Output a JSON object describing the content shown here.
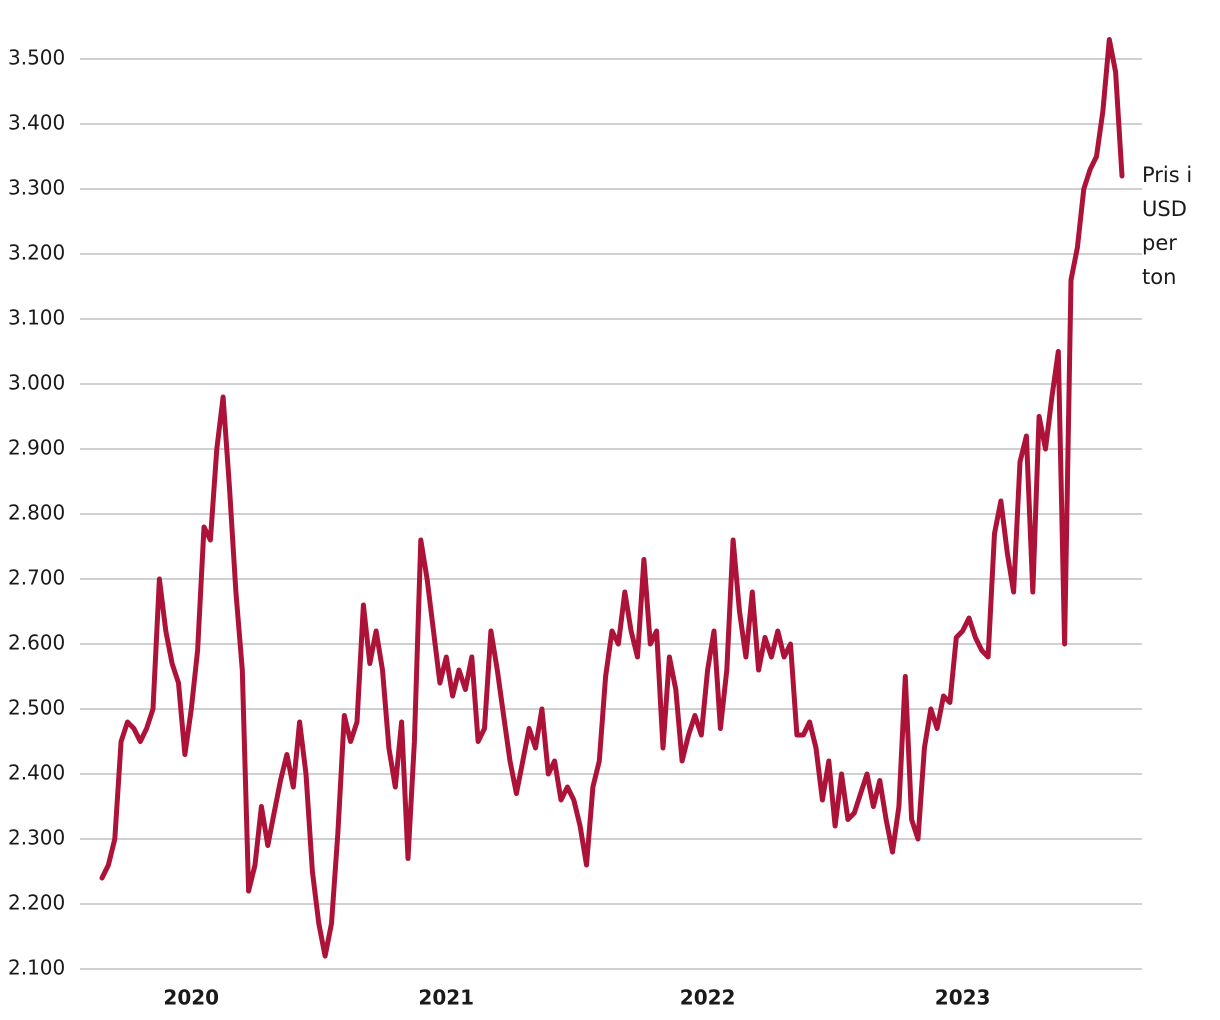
{
  "chart_data": {
    "type": "line",
    "annotation": "Pris i USD per ton",
    "categories": [
      null,
      null,
      null,
      null,
      null,
      null,
      null,
      null,
      null,
      null,
      null,
      null,
      null,
      null,
      "2020",
      null,
      null,
      null,
      null,
      null,
      null,
      null,
      null,
      null,
      null,
      null,
      null,
      null,
      null,
      null,
      null,
      null,
      null,
      null,
      null,
      null,
      null,
      null,
      null,
      null,
      null,
      null,
      null,
      null,
      null,
      null,
      null,
      null,
      null,
      null,
      null,
      null,
      null,
      null,
      "2021",
      null,
      null,
      null,
      null,
      null,
      null,
      null,
      null,
      null,
      null,
      null,
      null,
      null,
      null,
      null,
      null,
      null,
      null,
      null,
      null,
      null,
      null,
      null,
      null,
      null,
      null,
      null,
      null,
      null,
      null,
      null,
      null,
      null,
      null,
      null,
      null,
      null,
      null,
      null,
      null,
      "2022",
      null,
      null,
      null,
      null,
      null,
      null,
      null,
      null,
      null,
      null,
      null,
      null,
      null,
      null,
      null,
      null,
      null,
      null,
      null,
      null,
      null,
      null,
      null,
      null,
      null,
      null,
      null,
      null,
      null,
      null,
      null,
      null,
      null,
      null,
      null,
      null,
      null,
      null,
      null,
      "2023",
      null,
      null,
      null,
      null,
      null,
      null,
      null,
      null,
      null,
      null,
      null,
      null,
      null,
      null,
      null,
      null,
      null,
      null,
      null,
      null,
      null,
      null,
      null,
      null,
      null
    ],
    "values": [
      2240,
      2260,
      2300,
      2450,
      2480,
      2470,
      2450,
      2470,
      2500,
      2700,
      2620,
      2570,
      2540,
      2430,
      2500,
      2590,
      2780,
      2760,
      2900,
      2980,
      2840,
      2680,
      2560,
      2220,
      2260,
      2350,
      2290,
      2340,
      2390,
      2430,
      2380,
      2480,
      2400,
      2250,
      2170,
      2120,
      2170,
      2310,
      2490,
      2450,
      2480,
      2660,
      2570,
      2620,
      2560,
      2440,
      2380,
      2480,
      2270,
      2450,
      2760,
      2700,
      2620,
      2540,
      2580,
      2520,
      2560,
      2530,
      2580,
      2450,
      2470,
      2620,
      2560,
      2490,
      2420,
      2370,
      2420,
      2470,
      2440,
      2500,
      2400,
      2420,
      2360,
      2380,
      2360,
      2320,
      2260,
      2380,
      2420,
      2550,
      2620,
      2600,
      2680,
      2620,
      2580,
      2730,
      2600,
      2620,
      2440,
      2580,
      2530,
      2420,
      2460,
      2490,
      2460,
      2560,
      2620,
      2470,
      2560,
      2760,
      2650,
      2580,
      2680,
      2560,
      2610,
      2580,
      2620,
      2580,
      2600,
      2460,
      2460,
      2480,
      2440,
      2360,
      2420,
      2320,
      2400,
      2330,
      2340,
      2370,
      2400,
      2350,
      2390,
      2330,
      2280,
      2350,
      2550,
      2330,
      2300,
      2440,
      2500,
      2470,
      2520,
      2510,
      2610,
      2620,
      2640,
      2610,
      2590,
      2580,
      2770,
      2820,
      2740,
      2680,
      2880,
      2920,
      2680,
      2950,
      2900,
      2980,
      3050,
      2600,
      3160,
      3210,
      3300,
      3330,
      3350,
      3420,
      3530,
      3480,
      3320
    ],
    "color": "#ad1238",
    "ylim": [
      2100,
      3560
    ],
    "yticks": [
      {
        "value": 2100,
        "label": "2.100"
      },
      {
        "value": 2200,
        "label": "2.200"
      },
      {
        "value": 2300,
        "label": "2.300"
      },
      {
        "value": 2400,
        "label": "2.400"
      },
      {
        "value": 2500,
        "label": "2.500"
      },
      {
        "value": 2600,
        "label": "2.600"
      },
      {
        "value": 2700,
        "label": "2.700"
      },
      {
        "value": 2800,
        "label": "2.800"
      },
      {
        "value": 2900,
        "label": "2.900"
      },
      {
        "value": 3000,
        "label": "3.000"
      },
      {
        "value": 3100,
        "label": "3.100"
      },
      {
        "value": 3200,
        "label": "3.200"
      },
      {
        "value": 3300,
        "label": "3.300"
      },
      {
        "value": 3400,
        "label": "3.400"
      },
      {
        "value": 3500,
        "label": "3.500"
      }
    ],
    "grid": true
  }
}
